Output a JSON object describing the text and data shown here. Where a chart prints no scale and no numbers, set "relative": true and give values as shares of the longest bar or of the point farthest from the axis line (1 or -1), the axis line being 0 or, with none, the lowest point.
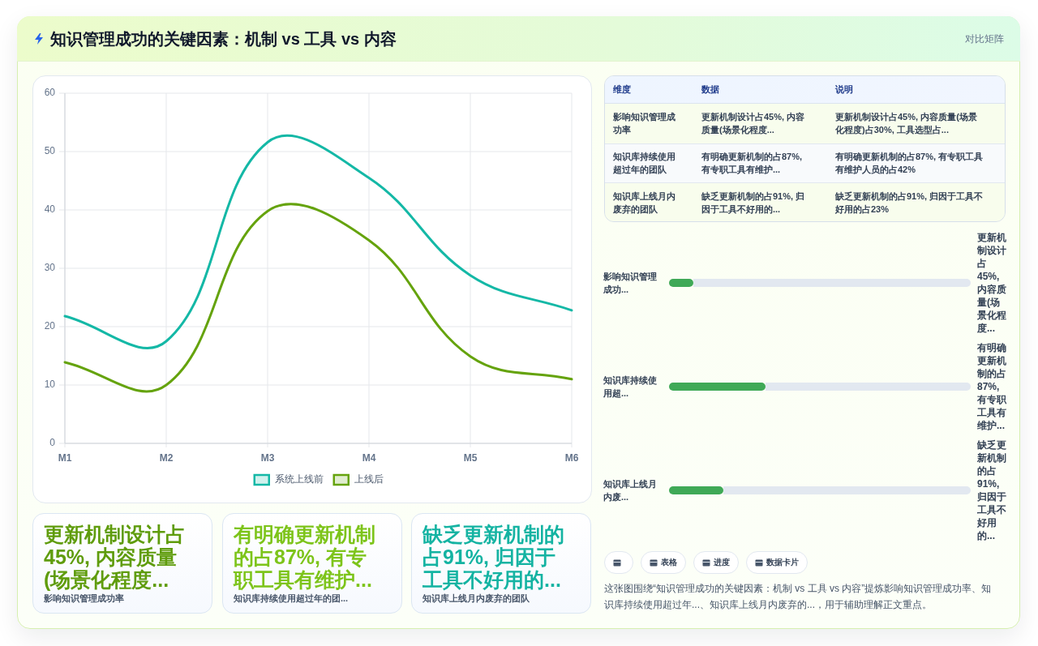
{
  "chart_data": [
    {
      "type": "other",
      "title": "知识管理成功的关键因素：机制 vs 工具 vs 内容",
      "subtitle": "对比矩阵"
    },
    {
      "type": "line",
      "categories": [
        "M1",
        "M2",
        "M3",
        "M4",
        "M5",
        "M6"
      ],
      "series": [
        {
          "name": "系统上线前",
          "color": "#14b8a6",
          "values": [
            21.8,
            17.5,
            51.6,
            45.5,
            28.8,
            22.8
          ]
        },
        {
          "name": "上线后",
          "color": "#65a30d",
          "values": [
            13.9,
            10,
            39.8,
            34.8,
            14.9,
            11
          ]
        }
      ],
      "ylim": [
        0,
        60
      ],
      "yticks": [
        0,
        10,
        20,
        30,
        40,
        50,
        60
      ],
      "grid": true,
      "legend": "bottom",
      "marker": "none",
      "line_style": "solid"
    },
    {
      "type": "other",
      "categories": [
        "维度",
        "数据",
        "说明"
      ],
      "cell_labels": [
        [
          "影响知识管理成功率",
          "更新机制设计占45%, 内容质量(场景化程度...",
          "更新机制设计占45%, 内容质量(场景化程度)占30%, 工具选型占..."
        ],
        [
          "知识库持续使用超过年的团队",
          "有明确更新机制的占87%, 有专职工具有维护...",
          "有明确更新机制的占87%, 有专职工具有维护人员的占42%"
        ],
        [
          "知识库上线月内废弃的团队",
          "缺乏更新机制的占91%, 归因于工具不好用的...",
          "缺乏更新机制的占91%, 归因于工具不好用的占23%"
        ]
      ]
    },
    {
      "type": "bar",
      "orientation": "horizontal",
      "stacked": true,
      "relative": true,
      "categories": [
        "影响知识管理成功...",
        "知识库持续使用超...",
        "知识库上线月内废..."
      ],
      "series": [
        {
          "color": "#3fa957",
          "values": [
            0.08,
            0.32,
            0.18
          ]
        },
        {
          "color": "#e2e8f0",
          "values": [
            0.92,
            0.68,
            0.82
          ]
        }
      ],
      "annotations": [
        "更新机制设计占45%, 内容质量(场景化程度...",
        "有明确更新机制的占87%, 有专职工具有维护...",
        "缺乏更新机制的占91%, 归因于工具不好用的..."
      ]
    },
    {
      "type": "other",
      "title": "更新机制设计占45%, 内容质量(场景化程度...",
      "subtitle": "影响知识管理成功率",
      "color": "#5f9c0c"
    },
    {
      "type": "other",
      "title": "有明确更新机制的占87%, 有专职工具有维护...",
      "subtitle": "知识库持续使用超过年的团...",
      "color": "#7dc41a"
    },
    {
      "type": "other",
      "title": "缺乏更新机制的占91%, 归因于工具不好用的...",
      "subtitle": "知识库上线月内废弃的团队",
      "color": "#14b3a2"
    },
    {
      "type": "other",
      "categories": [
        null,
        "表格",
        "进度",
        "数据卡片"
      ],
      "annotations": [
        "这张图围绕“知识管理成功的关键因素：机制 vs 工具 vs 内容”提炼影响知识管理成功率、知识库持续使用超过年...、知识库上线月内废弃的...，用于辅助理解正文重点。"
      ]
    }
  ]
}
